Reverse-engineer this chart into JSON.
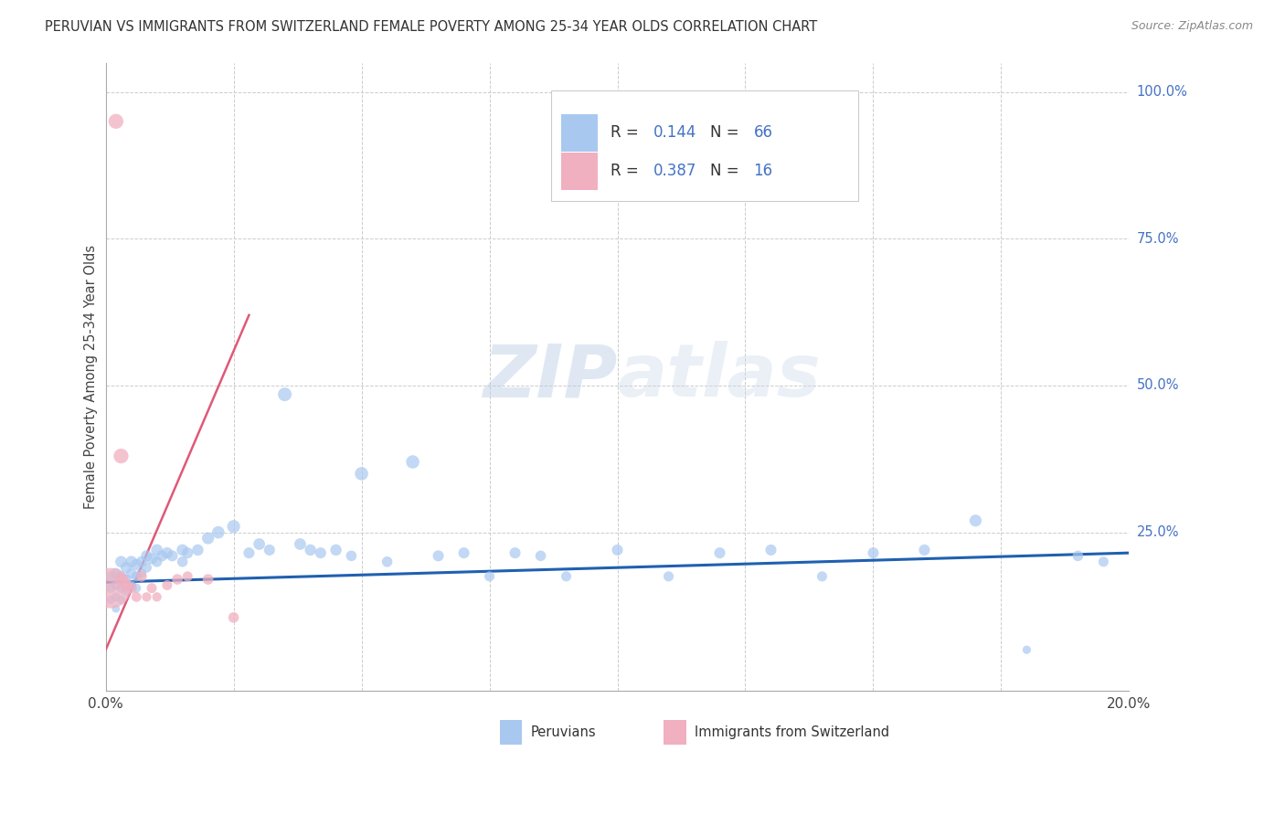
{
  "title": "PERUVIAN VS IMMIGRANTS FROM SWITZERLAND FEMALE POVERTY AMONG 25-34 YEAR OLDS CORRELATION CHART",
  "source": "Source: ZipAtlas.com",
  "ylabel": "Female Poverty Among 25-34 Year Olds",
  "xlim": [
    0.0,
    0.2
  ],
  "ylim": [
    -0.02,
    1.05
  ],
  "ytick_labels": [
    "100.0%",
    "75.0%",
    "50.0%",
    "25.0%"
  ],
  "ytick_positions": [
    1.0,
    0.75,
    0.5,
    0.25
  ],
  "xtick_positions": [
    0.0,
    0.025,
    0.05,
    0.075,
    0.1,
    0.125,
    0.15,
    0.175,
    0.2
  ],
  "watermark": "ZIPatlas",
  "blue_color": "#a8c8f0",
  "pink_color": "#f0b0c0",
  "blue_line_color": "#2060b0",
  "pink_line_color": "#e05878",
  "peruvians_x": [
    0.001,
    0.001,
    0.001,
    0.002,
    0.002,
    0.002,
    0.002,
    0.003,
    0.003,
    0.003,
    0.003,
    0.004,
    0.004,
    0.004,
    0.005,
    0.005,
    0.005,
    0.006,
    0.006,
    0.006,
    0.007,
    0.007,
    0.008,
    0.008,
    0.009,
    0.01,
    0.01,
    0.011,
    0.012,
    0.013,
    0.015,
    0.015,
    0.016,
    0.018,
    0.02,
    0.022,
    0.025,
    0.028,
    0.03,
    0.032,
    0.035,
    0.038,
    0.04,
    0.042,
    0.045,
    0.048,
    0.05,
    0.055,
    0.06,
    0.065,
    0.07,
    0.075,
    0.08,
    0.085,
    0.09,
    0.1,
    0.11,
    0.12,
    0.13,
    0.14,
    0.15,
    0.16,
    0.17,
    0.18,
    0.19,
    0.195
  ],
  "peruvians_y": [
    0.175,
    0.155,
    0.135,
    0.18,
    0.16,
    0.14,
    0.12,
    0.2,
    0.175,
    0.155,
    0.135,
    0.19,
    0.17,
    0.15,
    0.2,
    0.18,
    0.16,
    0.195,
    0.175,
    0.155,
    0.2,
    0.18,
    0.21,
    0.19,
    0.205,
    0.22,
    0.2,
    0.21,
    0.215,
    0.21,
    0.22,
    0.2,
    0.215,
    0.22,
    0.24,
    0.25,
    0.26,
    0.215,
    0.23,
    0.22,
    0.485,
    0.23,
    0.22,
    0.215,
    0.22,
    0.21,
    0.35,
    0.2,
    0.37,
    0.21,
    0.215,
    0.175,
    0.215,
    0.21,
    0.175,
    0.22,
    0.175,
    0.215,
    0.22,
    0.175,
    0.215,
    0.22,
    0.27,
    0.05,
    0.21,
    0.2
  ],
  "peruvians_size": [
    35,
    28,
    22,
    38,
    30,
    25,
    20,
    42,
    35,
    28,
    22,
    40,
    32,
    26,
    42,
    34,
    28,
    40,
    32,
    26,
    38,
    30,
    40,
    32,
    38,
    42,
    35,
    38,
    40,
    38,
    42,
    35,
    38,
    40,
    45,
    48,
    52,
    38,
    42,
    38,
    58,
    42,
    40,
    38,
    40,
    35,
    55,
    35,
    55,
    38,
    38,
    32,
    38,
    35,
    32,
    38,
    32,
    38,
    38,
    32,
    38,
    38,
    45,
    22,
    35,
    32
  ],
  "swiss_x": [
    0.001,
    0.002,
    0.003,
    0.003,
    0.004,
    0.005,
    0.006,
    0.007,
    0.008,
    0.009,
    0.01,
    0.012,
    0.014,
    0.016,
    0.02,
    0.025
  ],
  "swiss_y": [
    0.155,
    0.95,
    0.38,
    0.17,
    0.16,
    0.155,
    0.14,
    0.175,
    0.14,
    0.155,
    0.14,
    0.16,
    0.17,
    0.175,
    0.17,
    0.105
  ],
  "swiss_size": [
    400,
    55,
    55,
    38,
    32,
    30,
    25,
    28,
    22,
    25,
    22,
    25,
    28,
    25,
    28,
    28
  ],
  "blue_trend_x": [
    0.0,
    0.2
  ],
  "blue_trend_y": [
    0.165,
    0.215
  ],
  "pink_trend_x": [
    0.0,
    0.028
  ],
  "pink_trend_y": [
    0.05,
    0.62
  ]
}
